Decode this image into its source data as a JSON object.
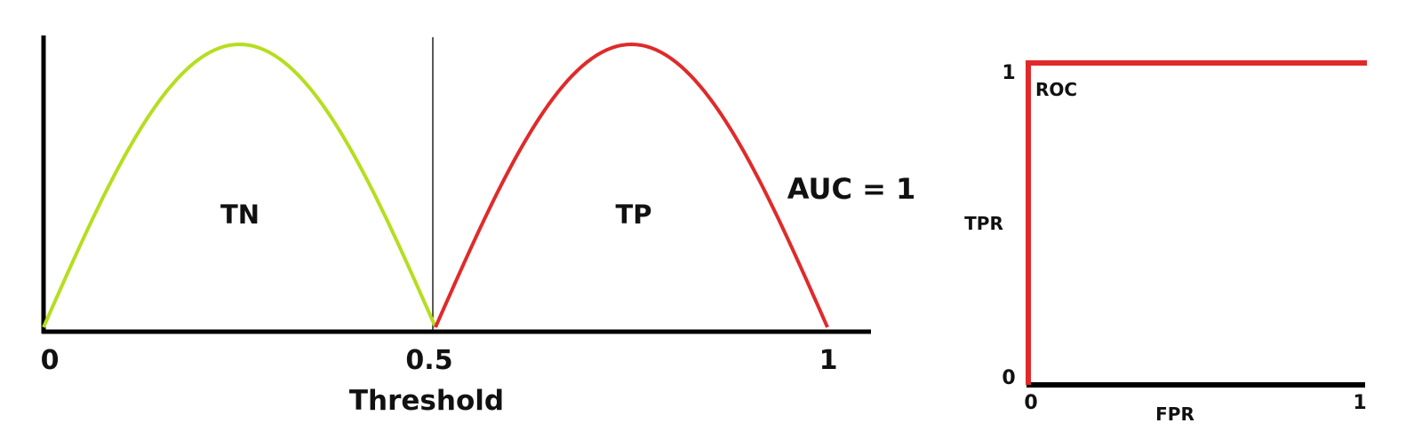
{
  "colors": {
    "negative_curve": "#b5de1f",
    "positive_curve": "#e02a2a",
    "roc_curve": "#e02a2a",
    "axis": "#000000",
    "text": "#111111"
  },
  "chart_data": [
    {
      "type": "line",
      "xlabel": "Threshold",
      "ylabel": "",
      "xlim": [
        0,
        1
      ],
      "x_ticks": [
        "0",
        "0.5",
        "1"
      ],
      "threshold": 0.5,
      "series": [
        {
          "name": "TN",
          "color": "#b5de1f",
          "x": [
            0,
            0.25,
            0.5
          ],
          "y": [
            0,
            1,
            0
          ]
        },
        {
          "name": "TP",
          "color": "#e02a2a",
          "x": [
            0.5,
            0.75,
            1
          ],
          "y": [
            0,
            1,
            0
          ]
        }
      ],
      "annotations": [
        "TN",
        "TP",
        "AUC = 1"
      ]
    },
    {
      "type": "line",
      "title": "",
      "xlabel": "FPR",
      "ylabel": "TPR",
      "xlim": [
        0,
        1
      ],
      "ylim": [
        0,
        1
      ],
      "x_ticks": [
        "0",
        "1"
      ],
      "y_ticks": [
        "0",
        "1"
      ],
      "series": [
        {
          "name": "ROC",
          "color": "#e02a2a",
          "x": [
            0,
            0,
            1
          ],
          "y": [
            0,
            1,
            1
          ]
        }
      ]
    }
  ]
}
